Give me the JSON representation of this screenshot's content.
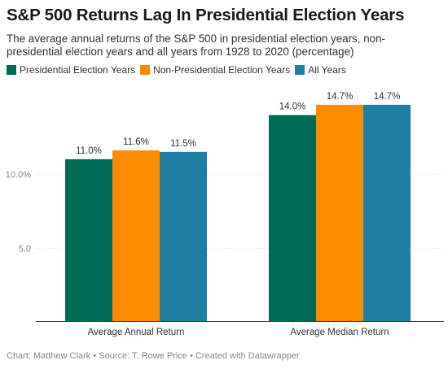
{
  "header": {
    "title": "S&P 500 Returns Lag In Presidential Election Years",
    "subtitle": "The average annual returns of the S&P 500 in presidential election years, non-presidential election years and all years from 1928 to 2020 (percentage)"
  },
  "footer": {
    "credit": "Chart: Matthew Clark • Source: T. Rowe Price • Created with Datawrapper"
  },
  "colors": {
    "presidential": "#006b54",
    "non_presidential": "#ff8c00",
    "all_years": "#1f7fa3"
  },
  "chart_data": {
    "type": "bar",
    "categories": [
      "Average Annual Return",
      "Average Median Return"
    ],
    "series": [
      {
        "name": "Presidential Election Years",
        "color": "#006b54",
        "values": [
          11.0,
          14.0
        ],
        "labels": [
          "11.0%",
          "14.0%"
        ]
      },
      {
        "name": "Non-Presidential Election Years",
        "color": "#ff8c00",
        "values": [
          11.6,
          14.7
        ],
        "labels": [
          "11.6%",
          "14.7%"
        ]
      },
      {
        "name": "All Years",
        "color": "#1f7fa3",
        "values": [
          11.5,
          14.7
        ],
        "labels": [
          "11.5%",
          "14.7%"
        ]
      }
    ],
    "yticks": [
      {
        "value": 5,
        "label": "5.0"
      },
      {
        "value": 10,
        "label": "10.0%"
      }
    ],
    "ylim": [
      0,
      15.5
    ],
    "grid": true,
    "legend_position": "top-left"
  }
}
